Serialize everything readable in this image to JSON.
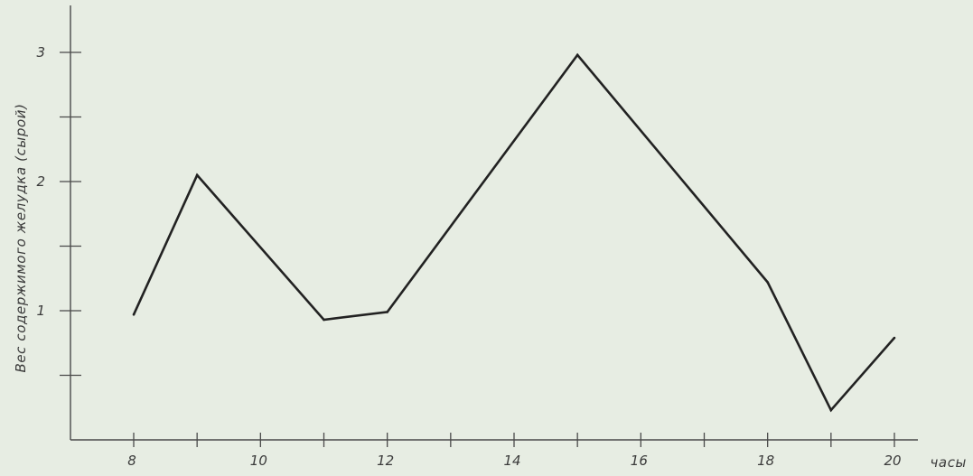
{
  "chart_data": {
    "type": "line",
    "title": "",
    "xlabel": "часы",
    "ylabel": "Вес содержимого желудка (сырой)",
    "x": [
      8,
      9,
      11,
      12,
      15,
      18,
      19,
      20
    ],
    "y": [
      0.97,
      2.05,
      0.93,
      0.99,
      2.98,
      1.22,
      0.23,
      0.79
    ],
    "xlim": [
      8,
      20
    ],
    "ylim": [
      0,
      3
    ],
    "x_ticks": [
      8,
      9,
      10,
      11,
      12,
      13,
      14,
      15,
      16,
      17,
      18,
      19,
      20
    ],
    "x_tick_labels": [
      "8",
      "10",
      "12",
      "14",
      "16",
      "18",
      "20"
    ],
    "x_tick_label_values": [
      8,
      10,
      12,
      14,
      16,
      18,
      20
    ],
    "y_ticks": [
      0.5,
      1,
      1.5,
      2,
      2.5,
      3
    ],
    "y_tick_labels": [
      "1",
      "2",
      "3"
    ],
    "y_tick_label_values": [
      1,
      2,
      3
    ],
    "grid": false,
    "line_color": "#222222",
    "axis_color": "#4a4a4a"
  }
}
